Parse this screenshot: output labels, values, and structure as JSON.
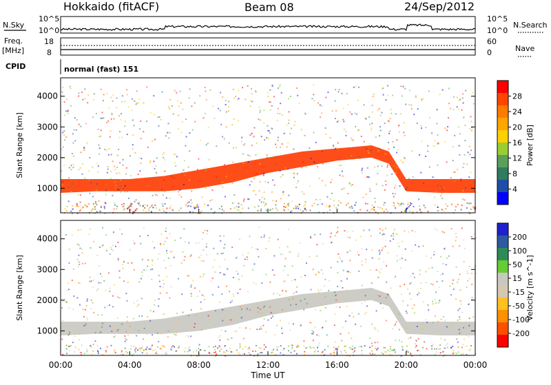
{
  "header": {
    "site": "Hokkaido (fitACF)",
    "beam": "Beam 08",
    "date": "24/Sep/2012"
  },
  "top_panels": {
    "nsky_label": "N.Sky",
    "nsky_ticks": [
      "10^5",
      "10^0"
    ],
    "nsearch_label": "N.Search",
    "freq_label": "Freq.",
    "freq_unit": "[MHz]",
    "freq_ticks": [
      "18",
      "8"
    ],
    "nave_ticks": [
      "60",
      "0"
    ],
    "nave_label": "Nave",
    "cpid_label": "CPID",
    "cpid_value": "normal (fast) 151"
  },
  "colors": {
    "power_scale": [
      "#0000ff",
      "#1e4ea8",
      "#2e7d5e",
      "#5aa05a",
      "#9acd32",
      "#ffd000",
      "#ffa500",
      "#ff7a00",
      "#ff4500",
      "#ff0000"
    ],
    "velocity_scale": [
      "#2020d0",
      "#2c5aa0",
      "#2e8b57",
      "#66cc33",
      "#c8c8c0",
      "#d4c8b0",
      "#ffc020",
      "#ff9000",
      "#ff5000",
      "#ff0000"
    ]
  },
  "chart_data": [
    {
      "type": "heatmap",
      "title": "",
      "xlabel": "",
      "ylabel": "Slant Range [km]",
      "xlim": [
        "00:00",
        "00:00"
      ],
      "ylim": [
        200,
        4600
      ],
      "yticks": [
        "1000",
        "2000",
        "3000",
        "4000"
      ],
      "xticks": [
        "00:00",
        "04:00",
        "08:00",
        "12:00",
        "16:00",
        "20:00",
        "00:00"
      ],
      "colorbar": {
        "label": "Power [dB]",
        "ticks": [
          "28",
          "24",
          "20",
          "16",
          "12",
          "8",
          "4"
        ],
        "range": [
          0,
          30
        ]
      },
      "main_echo_band": {
        "hours": [
          0,
          2,
          4,
          6,
          8,
          10,
          12,
          14,
          16,
          18,
          19,
          20,
          22,
          24
        ],
        "range_low_km": [
          850,
          900,
          900,
          900,
          1000,
          1200,
          1500,
          1700,
          1900,
          2000,
          1800,
          900,
          850,
          850
        ],
        "range_high_km": [
          1300,
          1300,
          1300,
          1400,
          1600,
          1800,
          2000,
          2200,
          2300,
          2400,
          2200,
          1300,
          1300,
          1300
        ],
        "power_db": 28
      }
    },
    {
      "type": "heatmap",
      "title": "",
      "xlabel": "Time UT",
      "ylabel": "Slant Range [km]",
      "xlim": [
        "00:00",
        "00:00"
      ],
      "ylim": [
        200,
        4600
      ],
      "yticks": [
        "1000",
        "2000",
        "3000",
        "4000"
      ],
      "xticks": [
        "00:00",
        "04:00",
        "08:00",
        "12:00",
        "16:00",
        "20:00",
        "00:00"
      ],
      "colorbar": {
        "label": "Velocity [m s^-1]",
        "ticks": [
          "200",
          "100",
          "50",
          "15",
          "-15",
          "-50",
          "-100",
          "-200"
        ],
        "range": [
          -250,
          250
        ]
      },
      "main_echo_band": {
        "hours": [
          0,
          2,
          4,
          6,
          8,
          10,
          12,
          14,
          16,
          18,
          19,
          20,
          22,
          24
        ],
        "range_low_km": [
          850,
          900,
          900,
          900,
          1000,
          1200,
          1500,
          1700,
          1900,
          2000,
          1800,
          900,
          850,
          850
        ],
        "range_high_km": [
          1300,
          1300,
          1300,
          1400,
          1600,
          1800,
          2000,
          2200,
          2300,
          2400,
          2200,
          1300,
          1300,
          1300
        ],
        "velocity_ms": 0
      }
    }
  ]
}
